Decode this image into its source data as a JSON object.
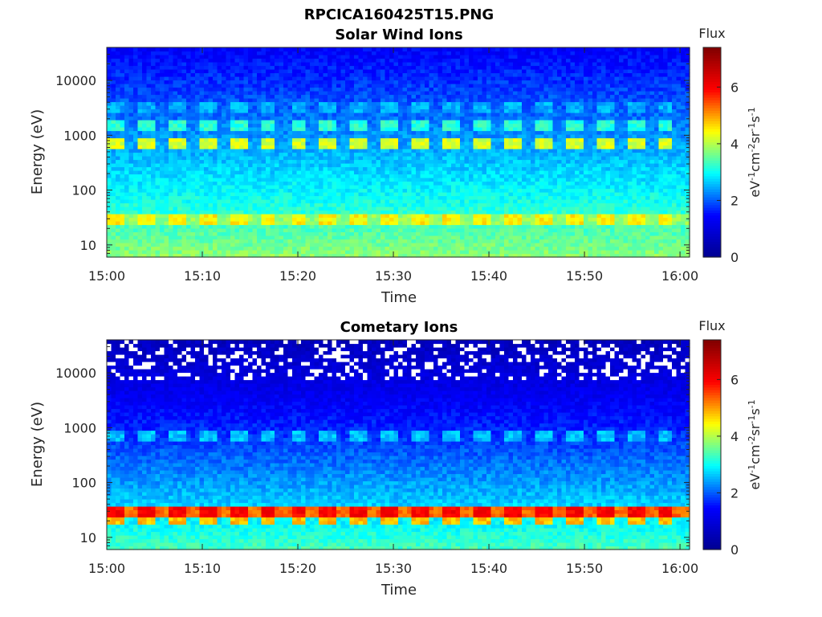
{
  "figure_title": "RPCICA160425T15.PNG",
  "colors": {
    "colormap": [
      "#00008f",
      "#0000ff",
      "#00ffff",
      "#ffff00",
      "#ff0000",
      "#800000"
    ],
    "gap": "#ffffff"
  },
  "chart_data": [
    {
      "type": "heatmap",
      "title": "Solar Wind Ions",
      "xlabel": "Time",
      "ylabel": "Energy (eV)",
      "x_ticks": [
        "15:00",
        "15:10",
        "15:20",
        "15:30",
        "15:40",
        "15:50",
        "16:00"
      ],
      "x_range": [
        "15:00",
        "16:01"
      ],
      "y_scale": "log",
      "y_ticks": [
        "10",
        "100",
        "1000",
        "10000"
      ],
      "y_range": [
        6,
        40000
      ],
      "colorbar": {
        "title": "Flux",
        "label": "eV-1cm-2sr-1s-1",
        "ticks": [
          "0",
          "2",
          "4",
          "6"
        ],
        "range": [
          0,
          7.4
        ]
      },
      "pattern": {
        "sweep_period_min": 3.2,
        "bands": [
          {
            "energy_eV": 700,
            "flux": 4.2,
            "kind": "periodic"
          },
          {
            "energy_eV": 1600,
            "flux": 3.2,
            "kind": "periodic"
          },
          {
            "energy_eV": 3200,
            "flux": 2.5,
            "kind": "periodic"
          },
          {
            "energy_eV": 30,
            "flux": 4.5,
            "kind": "periodic-strong"
          }
        ],
        "base_low_energy_flux": 3.8,
        "base_high_energy_flux": 1.4
      }
    },
    {
      "type": "heatmap",
      "title": "Cometary Ions",
      "xlabel": "Time",
      "ylabel": "Energy (eV)",
      "x_ticks": [
        "15:00",
        "15:10",
        "15:20",
        "15:30",
        "15:40",
        "15:50",
        "16:00"
      ],
      "x_range": [
        "15:00",
        "16:01"
      ],
      "y_scale": "log",
      "y_ticks": [
        "10",
        "100",
        "1000",
        "10000"
      ],
      "y_range": [
        6,
        40000
      ],
      "colorbar": {
        "title": "Flux",
        "label": "eV-1cm-2sr-1s-1",
        "ticks": [
          "0",
          "2",
          "4",
          "6"
        ],
        "range": [
          0,
          7.4
        ]
      },
      "pattern": {
        "sweep_period_min": 3.2,
        "bands": [
          {
            "energy_eV": 700,
            "flux": 2.6,
            "kind": "periodic"
          },
          {
            "energy_eV": 30,
            "flux": 6.0,
            "kind": "periodic-strong"
          },
          {
            "energy_eV": 20,
            "flux": 4.8,
            "kind": "periodic"
          }
        ],
        "base_low_energy_flux": 3.4,
        "base_high_energy_flux": 0.6,
        "data_gaps_above_eV": 8000
      }
    }
  ]
}
